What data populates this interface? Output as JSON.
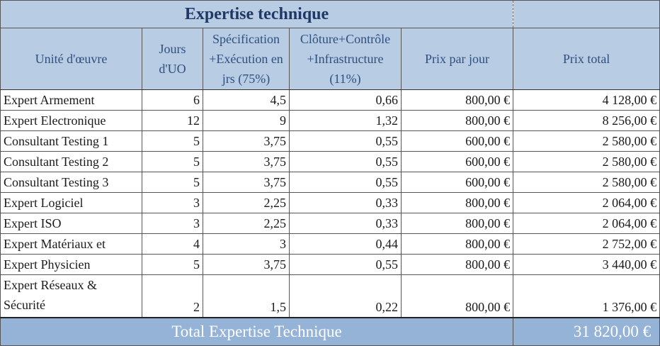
{
  "title": "Expertise technique",
  "headers": {
    "unit": "Unité d'œuvre",
    "days": "Jours d'UO",
    "spec": "Spécification +Exécution en jrs (75%)",
    "closure": "Clôture+Contrôle +Infrastructure (11%)",
    "price_day": "Prix par jour",
    "price_total": "Prix total"
  },
  "rows": [
    {
      "name": "Expert Armement",
      "days": "6",
      "spec": "4,5",
      "closure": "0,66",
      "price_day": "800,00 €",
      "total": "4 128,00 €"
    },
    {
      "name": "Expert Electronique",
      "days": "12",
      "spec": "9",
      "closure": "1,32",
      "price_day": "800,00 €",
      "total": "8 256,00 €"
    },
    {
      "name": "Consultant Testing 1",
      "days": "5",
      "spec": "3,75",
      "closure": "0,55",
      "price_day": "600,00 €",
      "total": "2 580,00 €"
    },
    {
      "name": "Consultant Testing 2",
      "days": "5",
      "spec": "3,75",
      "closure": "0,55",
      "price_day": "600,00 €",
      "total": "2 580,00 €"
    },
    {
      "name": "Consultant Testing 3",
      "days": "5",
      "spec": "3,75",
      "closure": "0,55",
      "price_day": "600,00 €",
      "total": "2 580,00 €"
    },
    {
      "name": "Expert Logiciel",
      "days": "3",
      "spec": "2,25",
      "closure": "0,33",
      "price_day": "800,00 €",
      "total": "2 064,00 €"
    },
    {
      "name": "Expert ISO",
      "days": "3",
      "spec": "2,25",
      "closure": "0,33",
      "price_day": "800,00 €",
      "total": "2 064,00 €"
    },
    {
      "name": "Expert Matériaux et",
      "days": "4",
      "spec": "3",
      "closure": "0,44",
      "price_day": "800,00 €",
      "total": "2 752,00 €"
    },
    {
      "name": "Expert Physicien",
      "days": "5",
      "spec": "3,75",
      "closure": "0,55",
      "price_day": "800,00 €",
      "total": "3 440,00 €"
    },
    {
      "name": "Expert Réseaux & Sécurité",
      "days": "2",
      "spec": "1,5",
      "closure": "0,22",
      "price_day": "800,00 €",
      "total": "1 376,00 €"
    }
  ],
  "total": {
    "label": "Total Expertise Technique",
    "value": "31 820,00 €"
  }
}
